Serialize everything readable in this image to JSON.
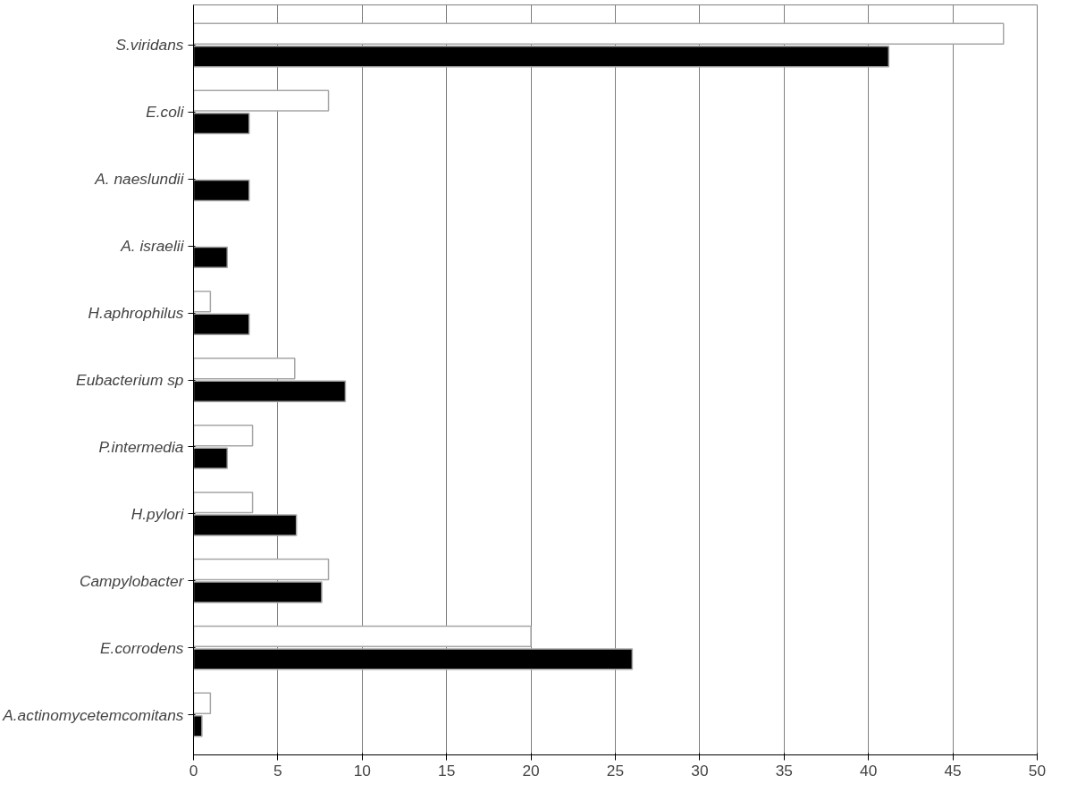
{
  "chart_data": {
    "type": "bar",
    "orientation": "horizontal",
    "categories": [
      "S.viridans",
      "E.coli",
      "A. naeslundii",
      "A. israelii",
      "H.aphrophilus",
      "Eubacterium sp",
      "P.intermedia",
      "H.pylori",
      "Campylobacter",
      "E.corrodens",
      "A.actinomycetemcomitans"
    ],
    "series": [
      {
        "color": "#ffffff",
        "values": [
          48,
          8,
          0,
          0,
          1,
          6,
          3.5,
          3.5,
          8,
          20,
          1
        ]
      },
      {
        "color": "#000000",
        "values": [
          41.2,
          3.3,
          3.3,
          2,
          3.3,
          9,
          2,
          6.1,
          7.6,
          26,
          0.5
        ]
      }
    ],
    "xlim": [
      0,
      50
    ],
    "xticks": [
      0,
      5,
      10,
      15,
      20,
      25,
      30,
      35,
      40,
      45,
      50
    ],
    "grid": "x"
  }
}
